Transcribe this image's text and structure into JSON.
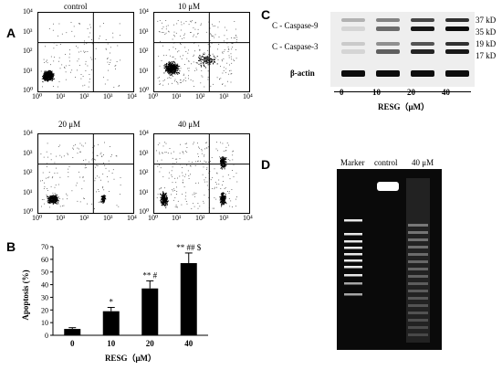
{
  "panels": {
    "a": "A",
    "b": "B",
    "c": "C",
    "d": "D"
  },
  "flow": {
    "titles": [
      "control",
      "10 μM",
      "20 μM",
      "40 μM"
    ],
    "ticks": [
      "10⁰",
      "10¹",
      "10²",
      "10³",
      "10⁴"
    ]
  },
  "chart_data": {
    "type": "bar",
    "categories": [
      "0",
      "10",
      "20",
      "40"
    ],
    "values": [
      5,
      19,
      37,
      57
    ],
    "errors": [
      1,
      3,
      6,
      8
    ],
    "annotations": [
      "",
      "*",
      "** #",
      "** ## $"
    ],
    "ylabel": "Apoptosis (%)",
    "xlabel": "RESG（μM）",
    "ylim": [
      0,
      70
    ],
    "yticks": [
      0,
      10,
      20,
      30,
      40,
      50,
      60,
      70
    ],
    "grid": false
  },
  "western": {
    "rows": [
      "C - Caspase-9",
      "C - Caspase-3",
      "β-actin"
    ],
    "sizes": [
      "37 kD",
      "35 kD",
      "19 kD",
      "17 kD"
    ],
    "lanes": [
      "0",
      "10",
      "20",
      "40"
    ],
    "xlabel": "RESG（μM）"
  },
  "gel": {
    "lanes": [
      "Marker",
      "control",
      "40 μM"
    ]
  }
}
